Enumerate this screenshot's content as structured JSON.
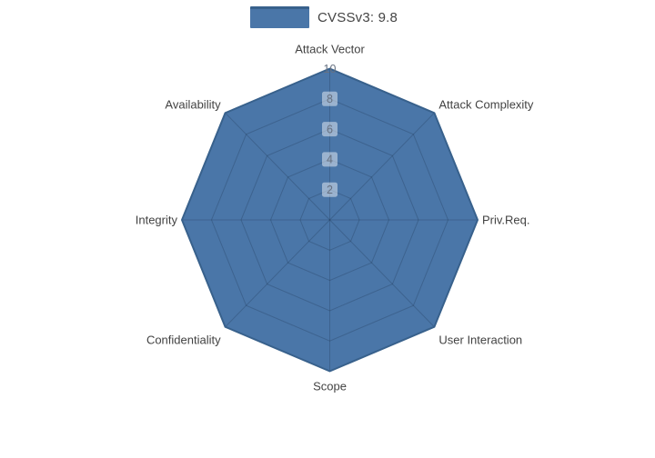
{
  "legend": {
    "label": "CVSSv3: 9.8",
    "swatch_fill": "#4a76a8",
    "swatch_border": "#38618c"
  },
  "chart_data": {
    "type": "radar",
    "title": "",
    "categories": [
      "Attack Vector",
      "Attack Complexity",
      "Priv.Req.",
      "User Interaction",
      "Scope",
      "Confidentiality",
      "Integrity",
      "Availability"
    ],
    "series": [
      {
        "name": "CVSSv3: 9.8",
        "values": [
          10,
          10,
          10,
          10,
          10,
          10,
          10,
          10
        ]
      }
    ],
    "radial_ticks": [
      2,
      4,
      6,
      8,
      10
    ],
    "range": [
      0,
      10
    ],
    "grid": true,
    "legend_position": "top-center",
    "colors": {
      "fill": "#4a76a8",
      "stroke": "#38618c",
      "grid_line": "rgba(30,50,80,0.28)",
      "tick_text": "#667080",
      "tick_bg": "rgba(255,255,255,0.45)",
      "tick_bg_outer": "rgba(255,255,255,0.95)",
      "label_text": "#424242"
    }
  }
}
